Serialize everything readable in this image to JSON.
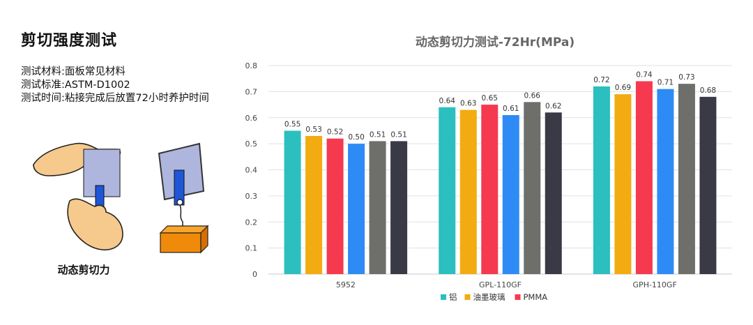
{
  "left": {
    "heading": "剪切强度测试",
    "material": "测试材料:面板常见材料",
    "standard": "测试标准:ASTM-D1002",
    "time": "测试时间:粘接完成后放置72小时养护时间",
    "caption": "动态剪切力"
  },
  "colors": {
    "series": [
      "#2bbfbf",
      "#f2ab11",
      "#f53a50",
      "#2e8bf5",
      "#6e6e6a",
      "#3a3a46"
    ],
    "grid": "#e0e0e0",
    "axis_text": "#444444"
  },
  "chart_data": {
    "type": "bar",
    "title": "动态剪切力测试-72Hr(MPa)",
    "categories": [
      "5952",
      "GPL-110GF",
      "GPH-110GF"
    ],
    "series": [
      {
        "name": "铝",
        "values": [
          0.55,
          0.64,
          0.72
        ]
      },
      {
        "name": "油墨玻璃",
        "values": [
          0.53,
          0.63,
          0.69
        ]
      },
      {
        "name": "PMMA",
        "values": [
          0.52,
          0.65,
          0.74
        ]
      },
      {
        "values": [
          0.5,
          0.61,
          0.71
        ]
      },
      {
        "values": [
          0.51,
          0.66,
          0.73
        ]
      },
      {
        "values": [
          0.51,
          0.62,
          0.68
        ]
      }
    ],
    "ylim": [
      0,
      0.8
    ],
    "yticks": [
      "0",
      "0.1",
      "0.2",
      "0.3",
      "0.4",
      "0.5",
      "0.6",
      "0.7",
      "0.8"
    ],
    "grid": true,
    "legend": "bottom"
  }
}
